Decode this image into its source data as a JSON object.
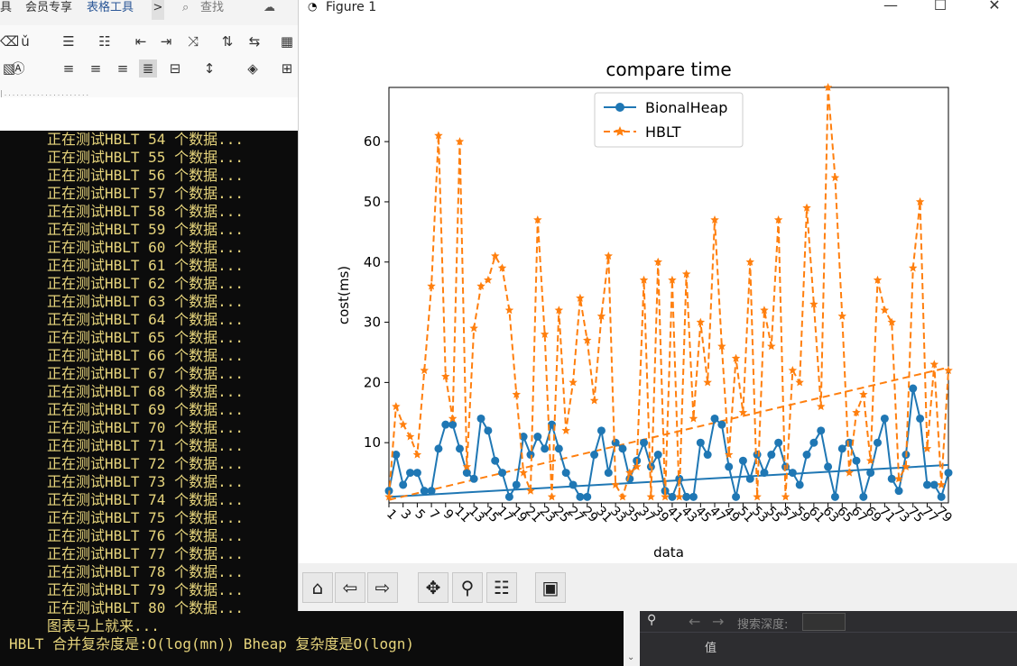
{
  "word": {
    "menu_items": [
      "具",
      "会员专享",
      "表格工具",
      ">",
      "查找"
    ],
    "accent": "#2b5797"
  },
  "console": {
    "lines": [
      "正在测试HBLT 54 个数据...",
      "正在测试HBLT 55 个数据...",
      "正在测试HBLT 56 个数据...",
      "正在测试HBLT 57 个数据...",
      "正在测试HBLT 58 个数据...",
      "正在测试HBLT 59 个数据...",
      "正在测试HBLT 60 个数据...",
      "正在测试HBLT 61 个数据...",
      "正在测试HBLT 62 个数据...",
      "正在测试HBLT 63 个数据...",
      "正在测试HBLT 64 个数据...",
      "正在测试HBLT 65 个数据...",
      "正在测试HBLT 66 个数据...",
      "正在测试HBLT 67 个数据...",
      "正在测试HBLT 68 个数据...",
      "正在测试HBLT 69 个数据...",
      "正在测试HBLT 70 个数据...",
      "正在测试HBLT 71 个数据...",
      "正在测试HBLT 72 个数据...",
      "正在测试HBLT 73 个数据...",
      "正在测试HBLT 74 个数据...",
      "正在测试HBLT 75 个数据...",
      "正在测试HBLT 76 个数据...",
      "正在测试HBLT 77 个数据...",
      "正在测试HBLT 78 个数据...",
      "正在测试HBLT 79 个数据...",
      "正在测试HBLT 80 个数据...",
      "图表马上就来..."
    ],
    "summary": "HBLT 合并复杂度是:O(log(mn)) Bheap 复杂度是O(logn)",
    "text_color": "#e7d57c",
    "bg": "#0c0c0c"
  },
  "ide": {
    "search_label": "搜索深度:",
    "value_header": "值"
  },
  "figure": {
    "window_title": "Figure 1",
    "toolbar": [
      "home-icon",
      "back-icon",
      "forward-icon",
      "pan-icon",
      "zoom-icon",
      "configure-icon",
      "save-icon"
    ]
  },
  "chart_data": {
    "type": "line",
    "title": "compare time",
    "xlabel": "data",
    "ylabel": "cost(ms)",
    "xlim": [
      1,
      80
    ],
    "ylim": [
      0,
      69
    ],
    "yticks": [
      10,
      20,
      30,
      40,
      50,
      60
    ],
    "xtick_labels": [
      "1",
      "3",
      "5",
      "7",
      "9",
      "11",
      "13",
      "15",
      "17",
      "19",
      "21",
      "23",
      "25",
      "27",
      "29",
      "31",
      "33",
      "35",
      "37",
      "39",
      "41",
      "43",
      "45",
      "47",
      "49",
      "51",
      "53",
      "55",
      "57",
      "59",
      "61",
      "63",
      "65",
      "67",
      "69",
      "71",
      "73",
      "75",
      "77",
      "79"
    ],
    "legend_position": "upper center",
    "series": [
      {
        "name": "BionalHeap",
        "style": "solid-circle",
        "color": "#1f77b4",
        "values": [
          2,
          8,
          3,
          5,
          5,
          2,
          2,
          9,
          13,
          13,
          9,
          5,
          4,
          14,
          12,
          7,
          5,
          1,
          3,
          11,
          8,
          11,
          9,
          13,
          9,
          5,
          3,
          1,
          1,
          8,
          12,
          5,
          10,
          9,
          4,
          7,
          10,
          6,
          8,
          2,
          1,
          4,
          1,
          1,
          10,
          8,
          14,
          13,
          6,
          1,
          7,
          4,
          8,
          5,
          8,
          10,
          6,
          5,
          3,
          8,
          10,
          12,
          6,
          1,
          9,
          10,
          7,
          1,
          5,
          10,
          14,
          4,
          2,
          8,
          19,
          14,
          3,
          3,
          1,
          5
        ]
      },
      {
        "name": "HBLT",
        "style": "dashed-star",
        "color": "#ff7f0e",
        "values": [
          1,
          16,
          13,
          11,
          8,
          22,
          36,
          61,
          21,
          14,
          60,
          6,
          29,
          36,
          37,
          41,
          39,
          32,
          18,
          5,
          2,
          47,
          28,
          1,
          32,
          12,
          20,
          34,
          27,
          17,
          31,
          41,
          3,
          1,
          5,
          6,
          37,
          1,
          40,
          1,
          37,
          1,
          38,
          14,
          30,
          20,
          47,
          26,
          8,
          24,
          15,
          40,
          1,
          32,
          26,
          47,
          1,
          22,
          20,
          49,
          33,
          16,
          69,
          54,
          31,
          5,
          15,
          18,
          7,
          37,
          32,
          30,
          4,
          6,
          39,
          50,
          9,
          23,
          3,
          22
        ]
      }
    ],
    "trend_lines": [
      {
        "series": "BionalHeap",
        "style": "solid",
        "from": [
          1,
          1
        ],
        "to": [
          80,
          6.3
        ]
      },
      {
        "series": "HBLT",
        "style": "dashed",
        "from": [
          1,
          0.5
        ],
        "to": [
          80,
          22.5
        ]
      }
    ]
  }
}
